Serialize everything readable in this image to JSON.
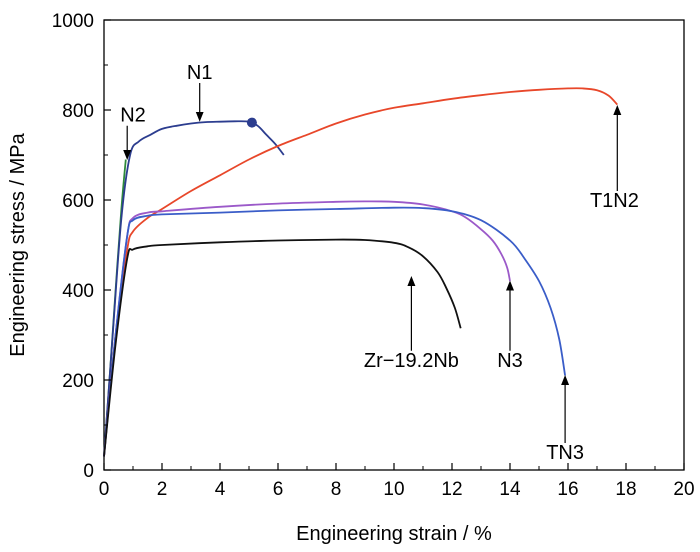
{
  "chart_data": {
    "type": "line",
    "xlabel": "Engineering strain / %",
    "ylabel": "Engineering stress / MPa",
    "xlim": [
      0,
      20
    ],
    "ylim": [
      0,
      1000
    ],
    "xticks": [
      "0",
      "2",
      "4",
      "6",
      "8",
      "10",
      "12",
      "14",
      "16",
      "18",
      "20"
    ],
    "yticks": [
      "0",
      "200",
      "400",
      "600",
      "800",
      "1000"
    ],
    "grid": false,
    "legend": "none",
    "series": [
      {
        "name": "N2",
        "color": "#2e8b3a",
        "x": [
          0,
          0.2,
          0.4,
          0.6,
          0.75
        ],
        "y": [
          30,
          210,
          400,
          580,
          690
        ]
      },
      {
        "name": "N1",
        "color": "#2c3d8f",
        "x": [
          0,
          0.3,
          0.6,
          0.9,
          1.2,
          1.6,
          2.0,
          2.5,
          3.0,
          3.5,
          4.0,
          4.5,
          5.0,
          5.3,
          5.6,
          5.9,
          6.2
        ],
        "y": [
          30,
          300,
          560,
          700,
          730,
          745,
          758,
          765,
          770,
          773,
          774,
          775,
          774,
          765,
          745,
          725,
          700
        ]
      },
      {
        "name": "T1N2",
        "color": "#e8472a",
        "x": [
          0,
          0.4,
          0.8,
          1.0,
          1.5,
          2.0,
          3.0,
          4.0,
          5.0,
          6.0,
          7.0,
          8.0,
          9.0,
          10.0,
          11.0,
          12.0,
          13.0,
          14.0,
          15.0,
          16.0,
          16.5,
          17.0,
          17.4,
          17.7
        ],
        "y": [
          30,
          300,
          490,
          530,
          560,
          580,
          620,
          655,
          690,
          720,
          745,
          770,
          790,
          805,
          815,
          825,
          833,
          840,
          845,
          848,
          848,
          844,
          832,
          812
        ]
      },
      {
        "name": "N3",
        "color": "#9b59c9",
        "x": [
          0,
          0.4,
          0.8,
          1.0,
          1.5,
          2.0,
          4.0,
          6.0,
          8.0,
          9.0,
          10.0,
          11.0,
          12.0,
          12.5,
          13.0,
          13.4,
          13.7,
          13.9,
          14.0
        ],
        "y": [
          30,
          300,
          520,
          560,
          572,
          575,
          585,
          592,
          596,
          597,
          596,
          590,
          575,
          560,
          535,
          510,
          480,
          450,
          420
        ]
      },
      {
        "name": "TN3",
        "color": "#3a5dc8",
        "x": [
          0,
          0.4,
          0.8,
          1.0,
          1.5,
          2.0,
          4.0,
          6.0,
          8.0,
          10.0,
          11.0,
          12.0,
          13.0,
          14.0,
          14.5,
          15.0,
          15.4,
          15.7,
          15.9
        ],
        "y": [
          30,
          300,
          520,
          555,
          565,
          568,
          572,
          577,
          580,
          583,
          582,
          575,
          555,
          510,
          470,
          420,
          360,
          290,
          210
        ]
      },
      {
        "name": "Zr−19.2Nb",
        "color": "#111111",
        "x": [
          0,
          0.4,
          0.8,
          1.0,
          1.5,
          2.0,
          4.0,
          6.0,
          8.0,
          9.0,
          10.0,
          10.5,
          11.0,
          11.5,
          11.8,
          12.1,
          12.3
        ],
        "y": [
          30,
          280,
          470,
          490,
          497,
          500,
          506,
          510,
          512,
          511,
          505,
          495,
          475,
          440,
          405,
          360,
          315
        ]
      }
    ],
    "markers": [
      {
        "series": "N1",
        "x": 5.1,
        "y": 772,
        "color": "#2c3d8f"
      }
    ],
    "annotations": [
      {
        "text": "N1",
        "arrow_x": 3.3,
        "arrow_from_y": 860,
        "arrow_to_y": 785,
        "label_x": 3.3,
        "label_y": 885
      },
      {
        "text": "N2",
        "arrow_x": 0.8,
        "arrow_from_y": 765,
        "arrow_to_y": 700,
        "label_x": 1.0,
        "label_y": 790
      },
      {
        "text": "T1N2",
        "arrow_x": 17.7,
        "arrow_from_y": 620,
        "arrow_to_y": 800,
        "label_x": 17.6,
        "label_y": 600
      },
      {
        "text": "Zr−19.2Nb",
        "arrow_x": 10.6,
        "arrow_from_y": 265,
        "arrow_to_y": 420,
        "label_x": 10.6,
        "label_y": 245
      },
      {
        "text": "N3",
        "arrow_x": 14.0,
        "arrow_from_y": 265,
        "arrow_to_y": 410,
        "label_x": 14.0,
        "label_y": 245
      },
      {
        "text": "TN3",
        "arrow_x": 15.9,
        "arrow_from_y": 60,
        "arrow_to_y": 200,
        "label_x": 15.9,
        "label_y": 40
      }
    ]
  }
}
